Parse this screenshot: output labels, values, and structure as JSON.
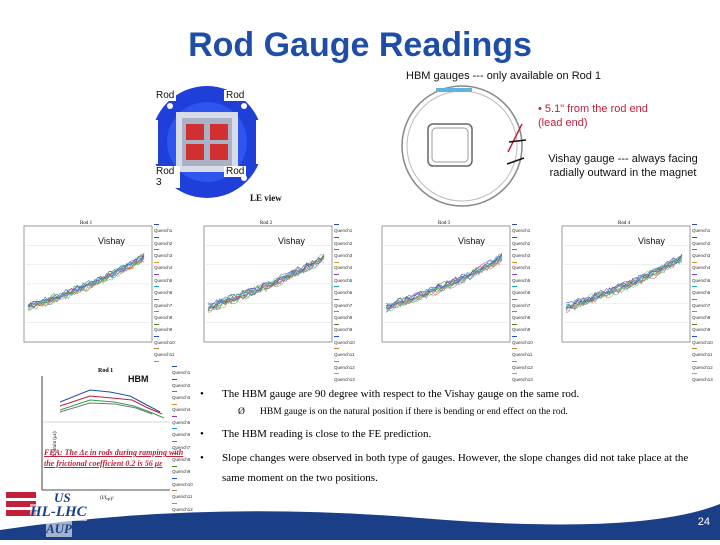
{
  "slide": {
    "title": "Rod Gauge Readings",
    "hbm_note": "HBM gauges --- only available on Rod 1",
    "bullet_distance": "•  5.1\"   from the rod end (lead end)",
    "vishay_note": "Vishay gauge --- always facing radially outward in the magnet",
    "page_number": "24"
  },
  "magnet_view": {
    "labels": [
      "Rod",
      "Rod",
      "Rod 3",
      "Rod"
    ],
    "view_label": "LE view"
  },
  "charts": {
    "panels": [
      {
        "title": "Rod 1",
        "gauge_label": "Vishay"
      },
      {
        "title": "Rod 2",
        "gauge_label": "Vishay"
      },
      {
        "title": "Rod 3",
        "gauge_label": "Vishay"
      },
      {
        "title": "Rod 4",
        "gauge_label": "Vishay"
      }
    ],
    "legend_entries": [
      "Quench1",
      "Quench2",
      "Quench3",
      "Quench4",
      "Quench5",
      "Quench6",
      "Quench7",
      "Quench8",
      "Quench9",
      "Quench10",
      "Quench11",
      "Quench12",
      "Quench13"
    ],
    "hbm_panel": {
      "title": "Rod 1",
      "gauge_label": "HBM",
      "legend_entries": [
        "Quench1",
        "Quench2",
        "Quench3",
        "Quench4",
        "Quench5",
        "Quench6",
        "Quench7",
        "Quench8",
        "Quench9",
        "Quench10",
        "Quench11",
        "Quench12",
        "Quench13"
      ]
    }
  },
  "fea_note": "FEA: The Δε in rods during ramping with the frictional coefficient 0.2 is 56 με",
  "findings": [
    {
      "level": 1,
      "bullet": "•",
      "text": "The HBM gauge are 90 degree with respect to the Vishay gauge on the same rod."
    },
    {
      "level": 2,
      "bullet": "Ø",
      "text": "HBM gauge is on the natural position if there is bending or end effect on the rod."
    },
    {
      "level": 1,
      "bullet": "•",
      "text": "The HBM reading is close to the FE prediction."
    },
    {
      "level": 1,
      "bullet": "•",
      "text": "Slope changes were observed in both type of gauges. However, the slope changes did not take place at the same moment on the two positions."
    }
  ],
  "logo": {
    "line1": "US",
    "line2": "HL-LHC",
    "line3": "AUP"
  },
  "colors": {
    "title": "#1f4ea8",
    "accent_red": "#c0203a",
    "footer_blue": "#1b3f86"
  }
}
